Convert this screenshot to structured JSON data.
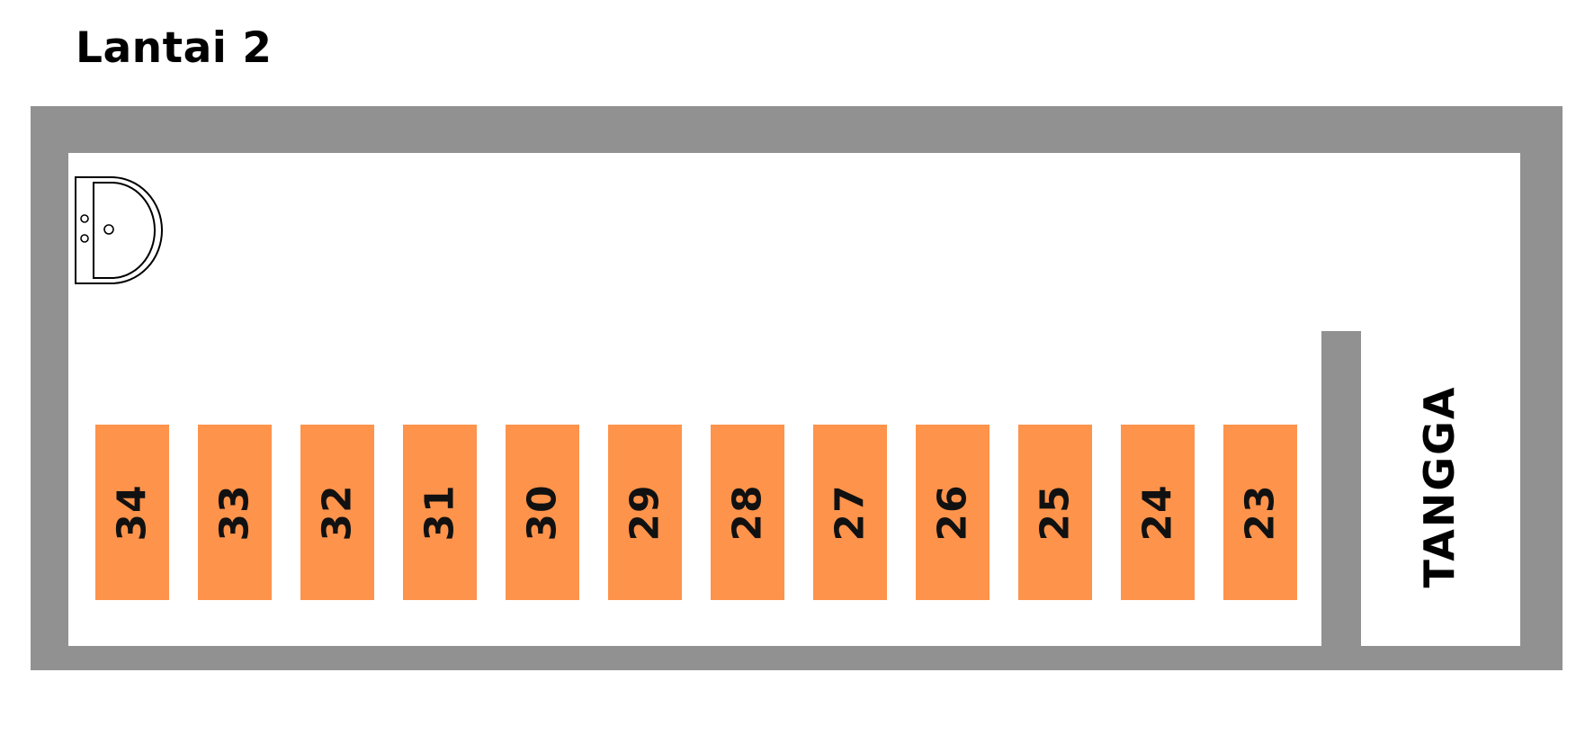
{
  "title": "Lantai 2",
  "stairs_label": "TANGGA",
  "colors": {
    "wall": "#919191",
    "desk": "#fe934b",
    "floor": "#ffffff"
  },
  "icons": {
    "sink": "sink-icon"
  },
  "desks": [
    "34",
    "33",
    "32",
    "31",
    "30",
    "29",
    "28",
    "27",
    "26",
    "25",
    "24",
    "23"
  ]
}
